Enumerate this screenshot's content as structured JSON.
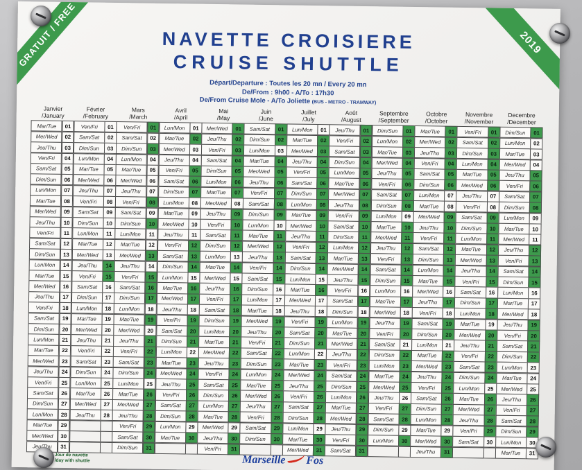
{
  "ribbons": {
    "top_left": "GRATUIT / FREE",
    "top_right": "2019"
  },
  "header": {
    "title_fr": "NAVETTE CROISIERE",
    "title_en": "CRUISE SHUTTLE",
    "line1": "Départ/Departure : Toutes les 20 mn / Every 20 mn",
    "line2": "De/From : 9h00  -  A/To : 17h30",
    "line3": "De/From Cruise Mole  -  A/To Joliette ",
    "line3_small": "(BUS - METRO - TRAMWAY)"
  },
  "calendar": {
    "weekday_labels": [
      "Lun/Mon",
      "Mar/Tue",
      "Mer/Wed",
      "Jeu/Thu",
      "Ven/Fri",
      "Sam/Sat",
      "Dim/Sun"
    ],
    "green_color": "#3d9a4c",
    "months": [
      {
        "name_fr": "Janvier",
        "name_en": "/January",
        "days": 31,
        "start": 1,
        "green": []
      },
      {
        "name_fr": "Février",
        "name_en": "/February",
        "days": 28,
        "start": 4,
        "green": [
          14,
          15
        ]
      },
      {
        "name_fr": "Mars",
        "name_en": "/March",
        "days": 31,
        "start": 4,
        "green": [
          1,
          3,
          8,
          10,
          13,
          15,
          16,
          17,
          19,
          21,
          22,
          23,
          24,
          26,
          27,
          28,
          29,
          30,
          31
        ]
      },
      {
        "name_fr": "Avril",
        "name_en": "/April",
        "days": 30,
        "start": 0,
        "green": [
          2,
          5,
          6,
          7,
          12,
          13,
          14,
          16,
          17,
          19,
          20,
          21,
          23,
          24,
          25,
          26,
          27,
          28,
          30
        ]
      },
      {
        "name_fr": "Mai",
        "name_en": "/May",
        "days": 31,
        "start": 2,
        "green": [
          1,
          2,
          3,
          4,
          5,
          6,
          7,
          9,
          10,
          11,
          12,
          14,
          16,
          17,
          18,
          19,
          20,
          21,
          22,
          23,
          24,
          25,
          26,
          27,
          28,
          30,
          31
        ]
      },
      {
        "name_fr": "Juin",
        "name_en": "/June",
        "days": 30,
        "start": 5,
        "green": [
          1,
          2,
          4,
          5,
          6,
          7,
          8,
          9,
          11,
          12,
          13,
          14,
          15,
          19,
          20,
          21,
          22,
          23,
          24,
          25,
          26,
          27,
          28,
          29,
          30
        ]
      },
      {
        "name_fr": "Juillet",
        "name_en": "/July",
        "days": 31,
        "start": 0,
        "green": [
          2,
          3,
          4,
          5,
          6,
          7,
          8,
          9,
          10,
          11,
          12,
          13,
          14,
          16,
          19,
          20,
          21,
          23,
          24,
          25,
          26,
          27,
          28,
          30,
          31
        ]
      },
      {
        "name_fr": "Août",
        "name_en": "/August",
        "days": 31,
        "start": 3,
        "green": [
          1,
          2,
          3,
          4,
          5,
          6,
          7,
          8,
          9,
          10,
          11,
          12,
          13,
          14,
          15,
          17,
          19,
          20,
          21,
          22,
          23,
          24,
          25,
          26,
          27,
          28,
          29,
          30,
          31
        ]
      },
      {
        "name_fr": "Septembre",
        "name_en": "/September",
        "days": 30,
        "start": 6,
        "green": [
          1,
          2,
          3,
          4,
          5,
          6,
          7,
          8,
          10,
          11,
          12,
          13,
          14,
          15,
          17,
          19,
          20,
          22,
          23,
          24,
          25,
          27,
          28,
          30
        ]
      },
      {
        "name_fr": "Octobre",
        "name_en": "/October",
        "days": 31,
        "start": 1,
        "green": [
          1,
          2,
          3,
          4,
          5,
          6,
          9,
          10,
          11,
          12,
          13,
          14,
          15,
          17,
          19,
          20,
          22,
          23,
          24,
          25,
          26,
          27,
          28,
          30,
          31
        ]
      },
      {
        "name_fr": "Novembre",
        "name_en": "/November",
        "days": 30,
        "start": 4,
        "green": [
          1,
          2,
          3,
          4,
          5,
          6,
          9,
          10,
          11,
          12,
          13,
          14,
          15,
          17,
          18,
          20,
          21,
          22,
          23,
          24,
          26,
          27,
          28,
          29
        ]
      },
      {
        "name_fr": "Decembre",
        "name_en": "/December",
        "days": 31,
        "start": 6,
        "green": [
          1,
          5,
          6,
          7,
          8,
          12,
          13,
          14,
          15,
          19,
          20,
          21,
          22,
          26,
          27,
          28,
          29
        ]
      }
    ]
  },
  "footer": {
    "legend_line1": "Jour de navette",
    "legend_line2": "/day with shuttle",
    "logo_word1": "Marseille",
    "logo_word2": "Fos"
  }
}
